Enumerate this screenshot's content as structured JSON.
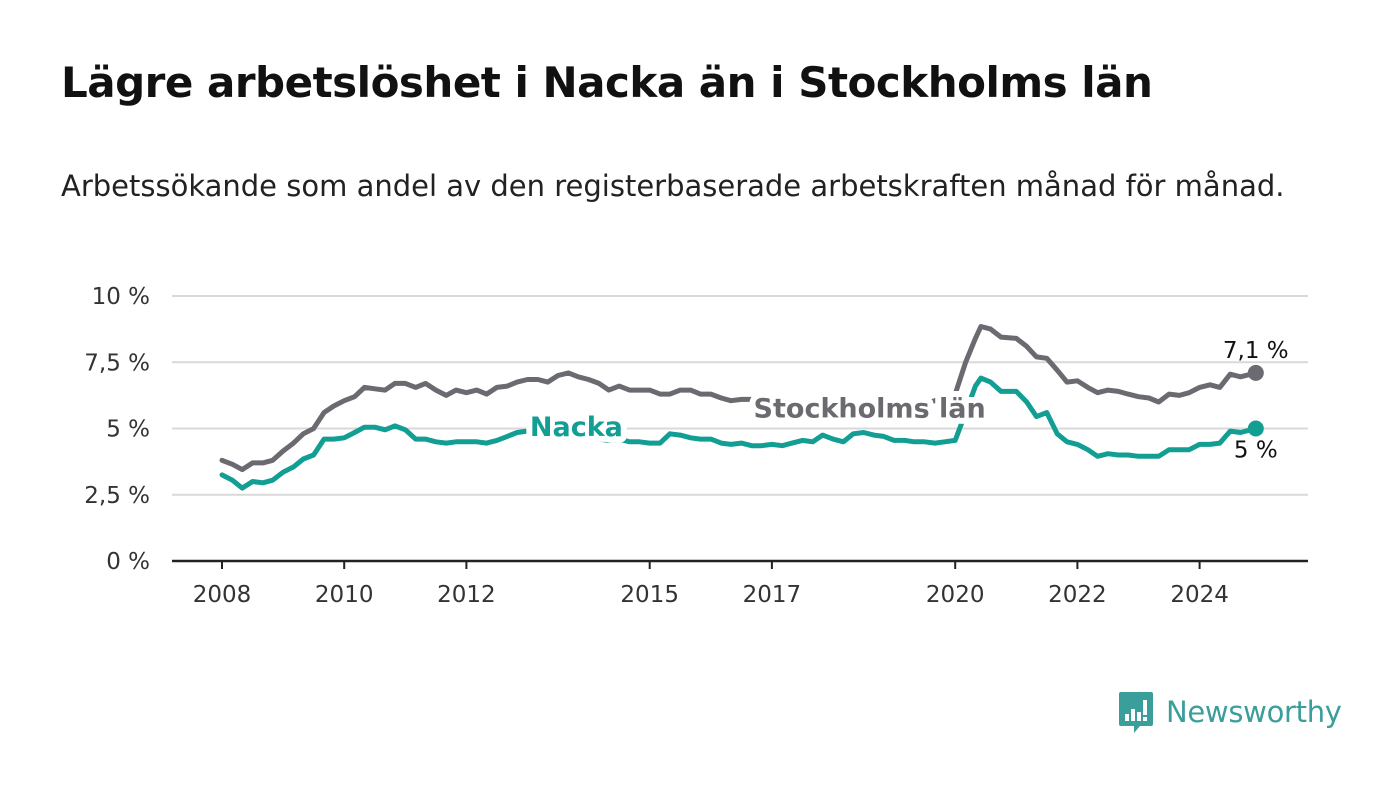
{
  "title": "Lägre arbetslöshet i Nacka än i Stockholms län",
  "subtitle": "Arbetssökande som andel av den registerbaserade arbetskraften månad för månad.",
  "brand": {
    "name": "Newsworthy",
    "color": "#3a9e9a",
    "icon": "newsworthy-logo-icon"
  },
  "chart_data": {
    "type": "line",
    "x_unit": "year",
    "xlim": [
      2007.2,
      2026.5
    ],
    "ylim": [
      0,
      10
    ],
    "yticks": [
      0,
      2.5,
      5,
      7.5,
      10
    ],
    "ytick_labels": [
      "0 %",
      "2,5 %",
      "5 %",
      "7,5 %",
      "10 %"
    ],
    "xticks": [
      2008,
      2010,
      2012,
      2015,
      2017,
      2020,
      2022,
      2024
    ],
    "xtick_labels": [
      "2008",
      "2010",
      "2012",
      "2015",
      "2017",
      "2020",
      "2022",
      "2024"
    ],
    "grid": true,
    "series": [
      {
        "name": "Stockholms län",
        "color": "#6b6a70",
        "end_label": "7,1 %",
        "points": [
          [
            2008.0,
            3.8
          ],
          [
            2008.17,
            3.65
          ],
          [
            2008.33,
            3.45
          ],
          [
            2008.5,
            3.7
          ],
          [
            2008.67,
            3.7
          ],
          [
            2008.83,
            3.8
          ],
          [
            2009.0,
            4.15
          ],
          [
            2009.17,
            4.45
          ],
          [
            2009.33,
            4.8
          ],
          [
            2009.5,
            5.0
          ],
          [
            2009.67,
            5.6
          ],
          [
            2009.83,
            5.85
          ],
          [
            2010.0,
            6.05
          ],
          [
            2010.17,
            6.2
          ],
          [
            2010.33,
            6.55
          ],
          [
            2010.5,
            6.5
          ],
          [
            2010.67,
            6.45
          ],
          [
            2010.83,
            6.7
          ],
          [
            2011.0,
            6.7
          ],
          [
            2011.17,
            6.55
          ],
          [
            2011.33,
            6.7
          ],
          [
            2011.5,
            6.45
          ],
          [
            2011.67,
            6.25
          ],
          [
            2011.83,
            6.45
          ],
          [
            2012.0,
            6.35
          ],
          [
            2012.17,
            6.45
          ],
          [
            2012.33,
            6.3
          ],
          [
            2012.5,
            6.55
          ],
          [
            2012.67,
            6.6
          ],
          [
            2012.83,
            6.75
          ],
          [
            2013.0,
            6.85
          ],
          [
            2013.17,
            6.85
          ],
          [
            2013.33,
            6.75
          ],
          [
            2013.5,
            7.0
          ],
          [
            2013.67,
            7.1
          ],
          [
            2013.83,
            6.95
          ],
          [
            2014.0,
            6.85
          ],
          [
            2014.17,
            6.7
          ],
          [
            2014.33,
            6.45
          ],
          [
            2014.5,
            6.6
          ],
          [
            2014.67,
            6.45
          ],
          [
            2014.83,
            6.45
          ],
          [
            2015.0,
            6.45
          ],
          [
            2015.17,
            6.3
          ],
          [
            2015.33,
            6.3
          ],
          [
            2015.5,
            6.45
          ],
          [
            2015.67,
            6.45
          ],
          [
            2015.83,
            6.3
          ],
          [
            2016.0,
            6.3
          ],
          [
            2016.17,
            6.15
          ],
          [
            2016.33,
            6.05
          ],
          [
            2016.5,
            6.1
          ],
          [
            2016.67,
            6.1
          ],
          [
            2016.83,
            6.05
          ],
          [
            2017.0,
            6.05
          ],
          [
            2017.17,
            6.0
          ],
          [
            2017.33,
            5.9
          ],
          [
            2017.5,
            5.85
          ],
          [
            2017.67,
            5.75
          ],
          [
            2017.83,
            5.7
          ],
          [
            2018.0,
            5.6
          ],
          [
            2018.17,
            5.5
          ],
          [
            2018.33,
            5.5
          ],
          [
            2018.5,
            5.45
          ],
          [
            2018.67,
            5.45
          ],
          [
            2018.83,
            5.55
          ],
          [
            2019.0,
            5.6
          ],
          [
            2019.17,
            5.7
          ],
          [
            2019.33,
            5.85
          ],
          [
            2019.5,
            5.95
          ],
          [
            2019.67,
            6.05
          ],
          [
            2019.83,
            6.2
          ],
          [
            2020.0,
            6.3
          ],
          [
            2020.17,
            7.5
          ],
          [
            2020.33,
            8.4
          ],
          [
            2020.42,
            8.85
          ],
          [
            2020.58,
            8.75
          ],
          [
            2020.75,
            8.45
          ],
          [
            2021.0,
            8.4
          ],
          [
            2021.17,
            8.1
          ],
          [
            2021.33,
            7.7
          ],
          [
            2021.5,
            7.65
          ],
          [
            2021.67,
            7.2
          ],
          [
            2021.83,
            6.75
          ],
          [
            2022.0,
            6.8
          ],
          [
            2022.17,
            6.55
          ],
          [
            2022.33,
            6.35
          ],
          [
            2022.5,
            6.45
          ],
          [
            2022.67,
            6.4
          ],
          [
            2022.83,
            6.3
          ],
          [
            2023.0,
            6.2
          ],
          [
            2023.17,
            6.15
          ],
          [
            2023.33,
            6.0
          ],
          [
            2023.5,
            6.3
          ],
          [
            2023.67,
            6.25
          ],
          [
            2023.83,
            6.35
          ],
          [
            2024.0,
            6.55
          ],
          [
            2024.17,
            6.65
          ],
          [
            2024.33,
            6.55
          ],
          [
            2024.5,
            7.05
          ],
          [
            2024.67,
            6.95
          ],
          [
            2024.92,
            7.1
          ]
        ]
      },
      {
        "name": "Nacka",
        "color": "#139e94",
        "end_label": "5 %",
        "points": [
          [
            2008.0,
            3.25
          ],
          [
            2008.17,
            3.05
          ],
          [
            2008.33,
            2.75
          ],
          [
            2008.5,
            3.0
          ],
          [
            2008.67,
            2.95
          ],
          [
            2008.83,
            3.05
          ],
          [
            2009.0,
            3.35
          ],
          [
            2009.17,
            3.55
          ],
          [
            2009.33,
            3.85
          ],
          [
            2009.5,
            4.0
          ],
          [
            2009.67,
            4.6
          ],
          [
            2009.83,
            4.6
          ],
          [
            2010.0,
            4.65
          ],
          [
            2010.17,
            4.85
          ],
          [
            2010.33,
            5.05
          ],
          [
            2010.5,
            5.05
          ],
          [
            2010.67,
            4.95
          ],
          [
            2010.83,
            5.1
          ],
          [
            2011.0,
            4.95
          ],
          [
            2011.17,
            4.6
          ],
          [
            2011.33,
            4.6
          ],
          [
            2011.5,
            4.5
          ],
          [
            2011.67,
            4.45
          ],
          [
            2011.83,
            4.5
          ],
          [
            2012.0,
            4.5
          ],
          [
            2012.17,
            4.5
          ],
          [
            2012.33,
            4.45
          ],
          [
            2012.5,
            4.55
          ],
          [
            2012.67,
            4.7
          ],
          [
            2012.83,
            4.85
          ],
          [
            2013.0,
            4.9
          ],
          [
            2013.17,
            4.85
          ],
          [
            2013.33,
            4.8
          ],
          [
            2013.5,
            4.85
          ],
          [
            2013.67,
            4.8
          ],
          [
            2013.83,
            4.75
          ],
          [
            2014.0,
            4.7
          ],
          [
            2014.17,
            4.6
          ],
          [
            2014.33,
            4.55
          ],
          [
            2014.5,
            4.6
          ],
          [
            2014.67,
            4.5
          ],
          [
            2014.83,
            4.5
          ],
          [
            2015.0,
            4.45
          ],
          [
            2015.17,
            4.45
          ],
          [
            2015.33,
            4.8
          ],
          [
            2015.5,
            4.75
          ],
          [
            2015.67,
            4.65
          ],
          [
            2015.83,
            4.6
          ],
          [
            2016.0,
            4.6
          ],
          [
            2016.17,
            4.45
          ],
          [
            2016.33,
            4.4
          ],
          [
            2016.5,
            4.45
          ],
          [
            2016.67,
            4.35
          ],
          [
            2016.83,
            4.35
          ],
          [
            2017.0,
            4.4
          ],
          [
            2017.17,
            4.35
          ],
          [
            2017.33,
            4.45
          ],
          [
            2017.5,
            4.55
          ],
          [
            2017.67,
            4.5
          ],
          [
            2017.83,
            4.75
          ],
          [
            2018.0,
            4.6
          ],
          [
            2018.17,
            4.5
          ],
          [
            2018.33,
            4.8
          ],
          [
            2018.5,
            4.85
          ],
          [
            2018.67,
            4.75
          ],
          [
            2018.83,
            4.7
          ],
          [
            2019.0,
            4.55
          ],
          [
            2019.17,
            4.55
          ],
          [
            2019.33,
            4.5
          ],
          [
            2019.5,
            4.5
          ],
          [
            2019.67,
            4.45
          ],
          [
            2019.83,
            4.5
          ],
          [
            2020.0,
            4.55
          ],
          [
            2020.17,
            5.6
          ],
          [
            2020.33,
            6.6
          ],
          [
            2020.42,
            6.9
          ],
          [
            2020.58,
            6.75
          ],
          [
            2020.75,
            6.4
          ],
          [
            2021.0,
            6.4
          ],
          [
            2021.17,
            6.0
          ],
          [
            2021.33,
            5.45
          ],
          [
            2021.5,
            5.6
          ],
          [
            2021.67,
            4.8
          ],
          [
            2021.83,
            4.5
          ],
          [
            2022.0,
            4.4
          ],
          [
            2022.17,
            4.2
          ],
          [
            2022.33,
            3.95
          ],
          [
            2022.5,
            4.05
          ],
          [
            2022.67,
            4.0
          ],
          [
            2022.83,
            4.0
          ],
          [
            2023.0,
            3.95
          ],
          [
            2023.17,
            3.95
          ],
          [
            2023.33,
            3.95
          ],
          [
            2023.5,
            4.2
          ],
          [
            2023.67,
            4.2
          ],
          [
            2023.83,
            4.2
          ],
          [
            2024.0,
            4.4
          ],
          [
            2024.17,
            4.4
          ],
          [
            2024.33,
            4.45
          ],
          [
            2024.5,
            4.9
          ],
          [
            2024.67,
            4.85
          ],
          [
            2024.92,
            5.0
          ]
        ]
      }
    ],
    "annotations": [
      {
        "text": "Nacka",
        "series": "Nacka",
        "x": 2013.8,
        "y": 5.05,
        "color": "#139e94"
      },
      {
        "text": "Stockholms län",
        "series": "Stockholms län",
        "x": 2018.6,
        "y": 5.75,
        "color": "#6b6a70"
      }
    ]
  }
}
